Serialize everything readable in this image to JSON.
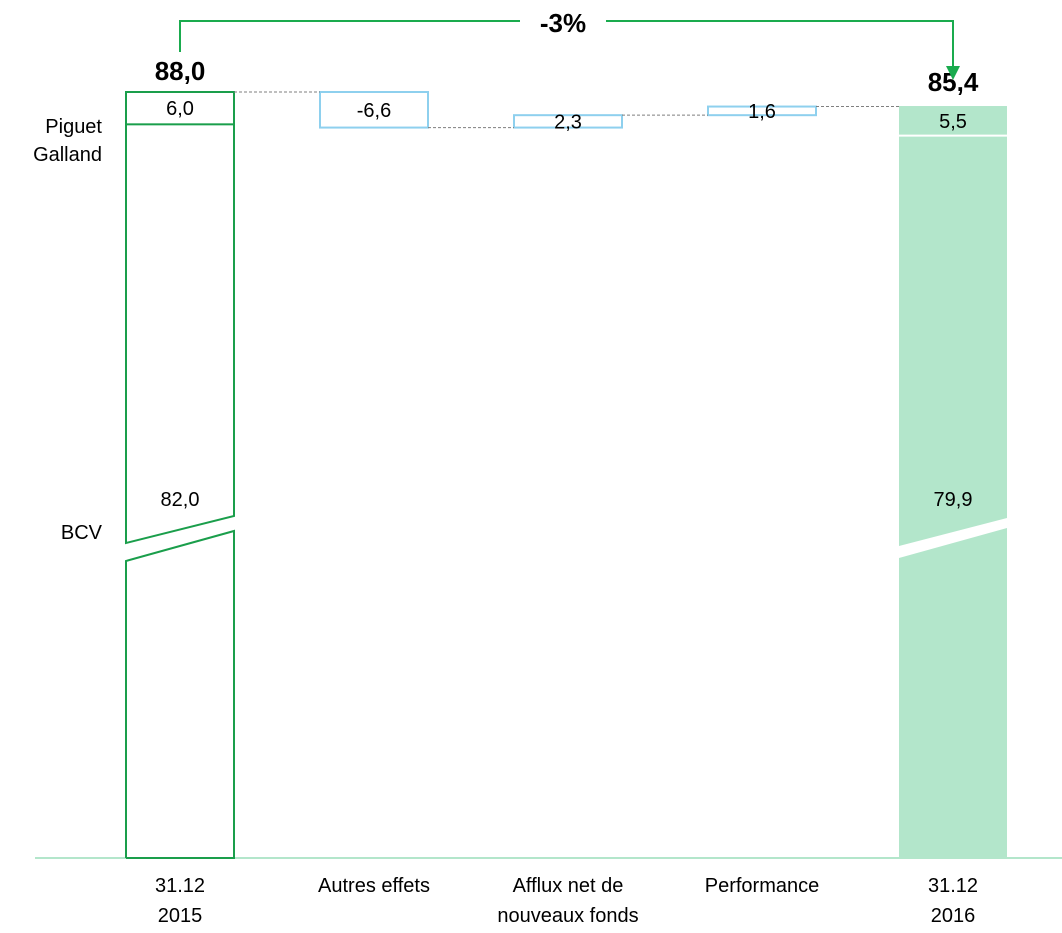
{
  "chart_data": {
    "type": "waterfall",
    "categories": [
      {
        "lines": [
          "31.12",
          "2015"
        ]
      },
      {
        "lines": [
          "Autres effets"
        ]
      },
      {
        "lines": [
          "Afflux net de",
          "nouveaux fonds"
        ]
      },
      {
        "lines": [
          "Performance"
        ]
      },
      {
        "lines": [
          "31.12",
          "2016"
        ]
      }
    ],
    "segment_labels": [
      "Piguet Galland",
      "BCV"
    ],
    "segment_label_lines": [
      [
        "Piguet",
        "Galland"
      ],
      [
        "BCV"
      ]
    ],
    "start": {
      "total": 88.0,
      "total_label": "88,0",
      "segments": [
        {
          "name": "BCV",
          "value": 82.0,
          "label": "82,0"
        },
        {
          "name": "Piguet Galland",
          "value": 6.0,
          "label": "6,0"
        }
      ]
    },
    "steps": [
      {
        "value": -6.6,
        "label": "-6,6"
      },
      {
        "value": 2.3,
        "label": "2,3"
      },
      {
        "value": 1.6,
        "label": "1,6"
      }
    ],
    "end": {
      "total": 85.4,
      "total_label": "85,4",
      "segments": [
        {
          "name": "BCV",
          "value": 79.9,
          "label": "79,9"
        },
        {
          "name": "Piguet Galland",
          "value": 5.5,
          "label": "5,5"
        }
      ]
    },
    "change_label": "-3%",
    "axis_break": true,
    "colors": {
      "start_outline": "#1a9e4b",
      "step_outline": "#8ed0ee",
      "end_fill": "#b3e6cb",
      "arrow": "#1aab4e",
      "axis": "#b3e6cb",
      "connector": "#7f7f7f"
    }
  }
}
